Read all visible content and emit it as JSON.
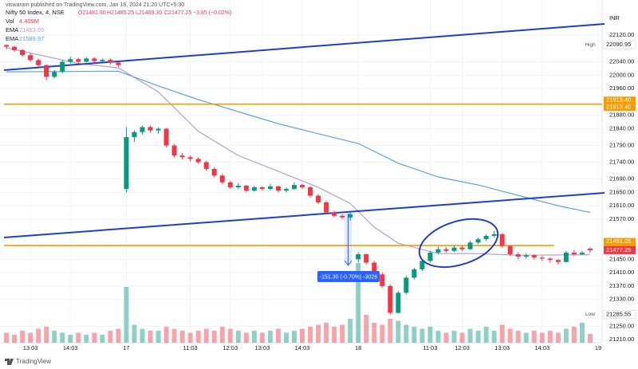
{
  "header": "viswaram published on TradingView.com, Jan 18, 2024 21:20 UTC+5:30",
  "footer": "TradingView",
  "chart_data": {
    "type": "candlestick",
    "title": "Nifty 50 Index, 4, NSE",
    "legend_ohlc": [
      "O21481.90",
      "H21485.25",
      "L21469.30",
      "C21477.25",
      "−3.85 (−0.02%)"
    ],
    "currency": "INR",
    "ylim": [
      21177,
      22177
    ],
    "yticks": [
      {
        "value": 22120,
        "label": "22120.00"
      },
      {
        "value": 22040,
        "label": "22040.00"
      },
      {
        "value": 22000,
        "label": "22000.00"
      },
      {
        "value": 21960,
        "label": "21960.00"
      },
      {
        "value": 21880,
        "label": "21880.00"
      },
      {
        "value": 21840,
        "label": "21840.00"
      },
      {
        "value": 21790,
        "label": "21790.00"
      },
      {
        "value": 21740,
        "label": "21740.00"
      },
      {
        "value": 21690,
        "label": "21690.00"
      },
      {
        "value": 21650,
        "label": "21650.00"
      },
      {
        "value": 21610,
        "label": "21610.00"
      },
      {
        "value": 21570,
        "label": "21570.00"
      },
      {
        "value": 21450,
        "label": "21450.00"
      },
      {
        "value": 21410,
        "label": "21410.00"
      },
      {
        "value": 21370,
        "label": "21370.00"
      },
      {
        "value": 21330,
        "label": "21330.00"
      },
      {
        "value": 21250,
        "label": "21250.00"
      },
      {
        "value": 21210,
        "label": "21210.00"
      }
    ],
    "xlim": [
      -0.8,
      74.5
    ],
    "xticks": [
      {
        "value": 3,
        "label": "13:03"
      },
      {
        "value": 8,
        "label": "14:03"
      },
      {
        "value": 15,
        "label": "17"
      },
      {
        "value": 23,
        "label": "11:03"
      },
      {
        "value": 28,
        "label": "12:03"
      },
      {
        "value": 32,
        "label": "13:03"
      },
      {
        "value": 37,
        "label": "14:03"
      },
      {
        "value": 44,
        "label": "18"
      },
      {
        "value": 53,
        "label": "11:03"
      },
      {
        "value": 57,
        "label": "12:03"
      },
      {
        "value": 62,
        "label": "13:03"
      },
      {
        "value": 67,
        "label": "14:03"
      },
      {
        "value": 74,
        "label": "19"
      }
    ],
    "up_color": "#089981",
    "down_color": "#f23645",
    "ohlc": [
      [
        22090,
        22092,
        22078,
        22085
      ],
      [
        22085,
        22088,
        22070,
        22075
      ],
      [
        22075,
        22078,
        22055,
        22060
      ],
      [
        22060,
        22065,
        22040,
        22045
      ],
      [
        22045,
        22050,
        22025,
        22030
      ],
      [
        22030,
        22032,
        21985,
        21995
      ],
      [
        21995,
        22015,
        21990,
        22010
      ],
      [
        22010,
        22045,
        22005,
        22040
      ],
      [
        22040,
        22055,
        22035,
        22048
      ],
      [
        22048,
        22052,
        22035,
        22040
      ],
      [
        22040,
        22055,
        22038,
        22050
      ],
      [
        22050,
        22054,
        22038,
        22042
      ],
      [
        22042,
        22050,
        22040,
        22046
      ],
      [
        22046,
        22050,
        22032,
        22038
      ],
      [
        22038,
        22042,
        22025,
        22030
      ],
      [
        21660,
        21845,
        21650,
        21815
      ],
      [
        21815,
        21835,
        21800,
        21830
      ],
      [
        21830,
        21850,
        21822,
        21845
      ],
      [
        21845,
        21850,
        21828,
        21835
      ],
      [
        21835,
        21845,
        21825,
        21840
      ],
      [
        21840,
        21842,
        21785,
        21790
      ],
      [
        21790,
        21795,
        21755,
        21760
      ],
      [
        21760,
        21768,
        21748,
        21755
      ],
      [
        21755,
        21760,
        21742,
        21750
      ],
      [
        21750,
        21755,
        21735,
        21740
      ],
      [
        21740,
        21745,
        21715,
        21720
      ],
      [
        21720,
        21725,
        21695,
        21700
      ],
      [
        21700,
        21705,
        21675,
        21680
      ],
      [
        21680,
        21685,
        21660,
        21665
      ],
      [
        21665,
        21678,
        21660,
        21670
      ],
      [
        21670,
        21672,
        21650,
        21655
      ],
      [
        21655,
        21670,
        21652,
        21665
      ],
      [
        21665,
        21668,
        21655,
        21660
      ],
      [
        21660,
        21675,
        21656,
        21668
      ],
      [
        21668,
        21670,
        21650,
        21655
      ],
      [
        21655,
        21665,
        21650,
        21660
      ],
      [
        21660,
        21680,
        21658,
        21672
      ],
      [
        21672,
        21676,
        21660,
        21665
      ],
      [
        21665,
        21668,
        21635,
        21640
      ],
      [
        21640,
        21645,
        21615,
        21620
      ],
      [
        21620,
        21625,
        21585,
        21590
      ],
      [
        21590,
        21595,
        21575,
        21580
      ],
      [
        21580,
        21585,
        21570,
        21575
      ],
      [
        21575,
        21595,
        21565,
        21585
      ],
      [
        21450,
        21470,
        21440,
        21465
      ],
      [
        21465,
        21468,
        21435,
        21440
      ],
      [
        21440,
        21445,
        21400,
        21405
      ],
      [
        21405,
        21410,
        21365,
        21370
      ],
      [
        21370,
        21375,
        21285.55,
        21290
      ],
      [
        21290,
        21355,
        21288,
        21350
      ],
      [
        21350,
        21400,
        21345,
        21395
      ],
      [
        21395,
        21425,
        21390,
        21420
      ],
      [
        21420,
        21450,
        21415,
        21445
      ],
      [
        21445,
        21475,
        21440,
        21470
      ],
      [
        21470,
        21488,
        21465,
        21480
      ],
      [
        21480,
        21485,
        21470,
        21475
      ],
      [
        21475,
        21492,
        21472,
        21485
      ],
      [
        21485,
        21490,
        21475,
        21480
      ],
      [
        21480,
        21505,
        21478,
        21500
      ],
      [
        21500,
        21515,
        21495,
        21510
      ],
      [
        21510,
        21525,
        21505,
        21520
      ],
      [
        21520,
        21535,
        21515,
        21525
      ],
      [
        21525,
        21528,
        21485,
        21490
      ],
      [
        21490,
        21492,
        21460,
        21465
      ],
      [
        21465,
        21470,
        21450,
        21458
      ],
      [
        21458,
        21468,
        21452,
        21462
      ],
      [
        21462,
        21465,
        21450,
        21455
      ],
      [
        21455,
        21460,
        21445,
        21452
      ],
      [
        21452,
        21456,
        21440,
        21448
      ],
      [
        21448,
        21450,
        21435,
        21442
      ],
      [
        21442,
        21475,
        21440,
        21470
      ],
      [
        21470,
        21478,
        21460,
        21465
      ],
      [
        21465,
        21475,
        21462,
        21470
      ],
      [
        21481.9,
        21485.25,
        21469.3,
        21477.25
      ]
    ],
    "volume_name": "Vol",
    "volume_value_label": "4.409M",
    "volume": [
      5,
      4,
      6,
      5,
      7,
      8,
      6,
      5,
      4,
      5,
      4,
      5,
      4,
      6,
      7,
      28,
      9,
      7,
      6,
      6,
      8,
      7,
      6,
      5,
      6,
      7,
      6,
      8,
      7,
      6,
      5,
      6,
      5,
      6,
      7,
      5,
      6,
      7,
      8,
      9,
      10,
      8,
      9,
      12,
      40,
      14,
      10,
      9,
      12,
      11,
      9,
      8,
      7,
      8,
      6,
      5,
      6,
      5,
      7,
      6,
      8,
      6,
      9,
      7,
      6,
      5,
      6,
      5,
      6,
      5,
      7,
      8,
      10,
      4.409
    ],
    "emas": [
      {
        "name": "EMA",
        "color": "#b39ddb",
        "x": [
          0,
          9,
          14,
          19,
          24,
          29,
          34,
          39,
          43,
          46,
          49,
          54,
          59,
          64,
          73
        ],
        "values": [
          22082,
          22035,
          22022,
          21950,
          21832,
          21760,
          21713,
          21665,
          21617,
          21546,
          21498,
          21467,
          21467,
          21462,
          21463.65
        ]
      },
      {
        "name": "EMA",
        "color": "#5ba4e0",
        "x": [
          0,
          14,
          19,
          24,
          29,
          34,
          39,
          44,
          49,
          54,
          59,
          64,
          69,
          73
        ],
        "values": [
          22010,
          22012,
          21968,
          21927,
          21891,
          21855,
          21825,
          21796,
          21737,
          21696,
          21672,
          21641,
          21610,
          21589.97
        ]
      }
    ],
    "high_label": "High",
    "high": 22090.95,
    "low_label": "Low",
    "low": 21285.55,
    "levels": [
      {
        "value": 21913.4,
        "label": "21913.40",
        "color": "#f59d00"
      },
      {
        "value": 21491.05,
        "label": "21491.05",
        "color": "#f59d00"
      }
    ],
    "last_price": 21477.25,
    "measure_label": "-151.30 (-0.70%) -3026"
  }
}
